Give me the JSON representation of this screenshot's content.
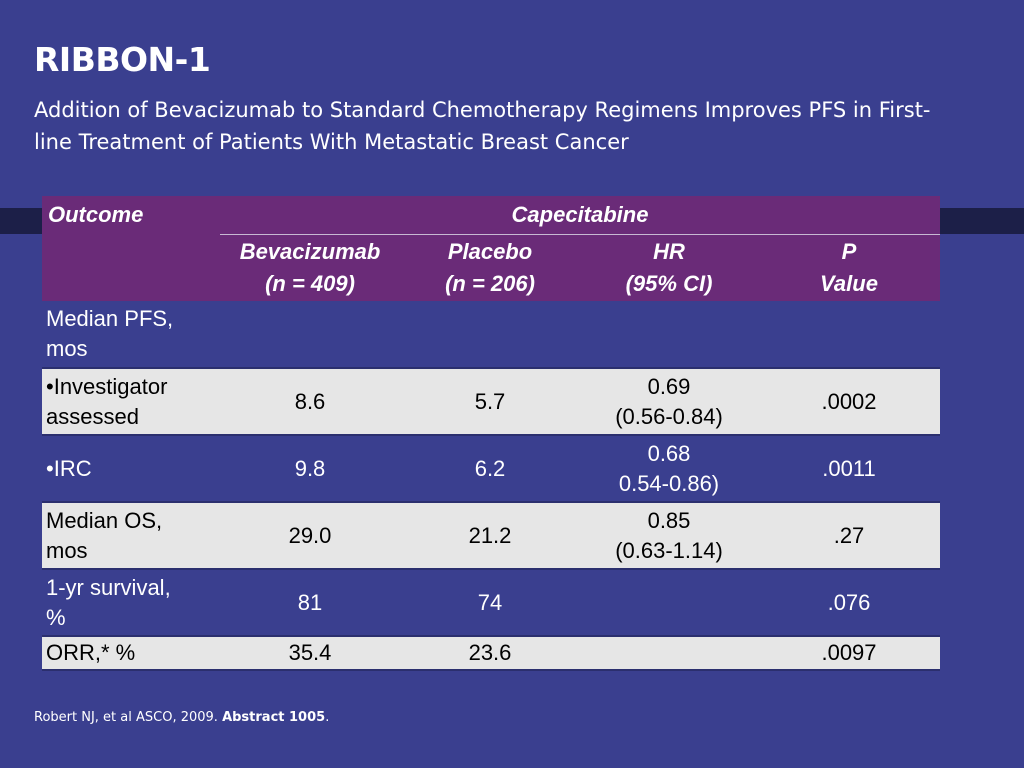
{
  "slide": {
    "title": "RIBBON-1",
    "subtitle": "Addition of Bevacizumab to Standard Chemotherapy Regimens Improves PFS in First-line Treatment of Patients With Metastatic Breast Cancer",
    "citation_plain": "Robert NJ, et al  ASCO, 2009. ",
    "citation_bold": "Abstract 1005",
    "citation_end": "."
  },
  "table": {
    "header_outcome": "Outcome",
    "header_group": "Capecitabine",
    "columns": [
      {
        "line1": "Bevacizumab",
        "line2": "(n = 409)"
      },
      {
        "line1": "Placebo",
        "line2": "(n = 206)"
      },
      {
        "line1": "HR",
        "line2": "(95% CI)"
      },
      {
        "line1": "P",
        "line2": "Value"
      }
    ],
    "rows": [
      {
        "label1": "Median PFS,",
        "label2": "mos",
        "bev": "",
        "pla": "",
        "hr1": "",
        "hr2": "",
        "p": ""
      },
      {
        "label1": "•Investigator",
        "label2": "assessed",
        "bev": "8.6",
        "pla": "5.7",
        "hr1": "0.69",
        "hr2": "(0.56-0.84)",
        "p": ".0002"
      },
      {
        "label1": "•IRC",
        "label2": "",
        "bev": "9.8",
        "pla": "6.2",
        "hr1": "0.68",
        "hr2": "0.54-0.86)",
        "p": ".0011"
      },
      {
        "label1": "Median OS,",
        "label2": "mos",
        "bev": "29.0",
        "pla": "21.2",
        "hr1": "0.85",
        "hr2": "(0.63-1.14)",
        "p": ".27"
      },
      {
        "label1": "1-yr survival,",
        "label2": "%",
        "bev": "81",
        "pla": "74",
        "hr1": "",
        "hr2": "",
        "p": ".076"
      },
      {
        "label1": "ORR,* %",
        "label2": "",
        "bev": "35.4",
        "pla": "23.6",
        "hr1": "",
        "hr2": "",
        "p": ".0097"
      }
    ]
  }
}
